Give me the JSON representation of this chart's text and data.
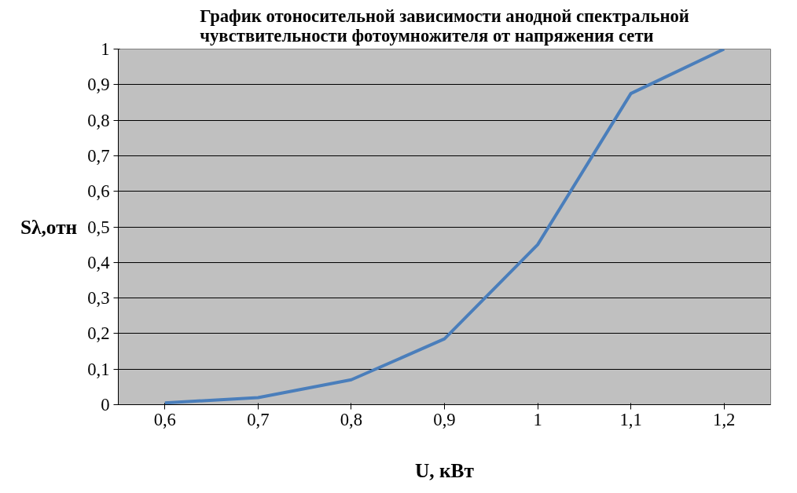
{
  "chart_data": {
    "type": "line",
    "title": "График отоносительной зависимости анодной спектральной\nчувствительности фотоумножителя от напряжения сети",
    "xlabel": "U, кВт",
    "ylabel": "Sλ,отн",
    "categories": [
      "0,6",
      "0,7",
      "0,8",
      "0,9",
      "1",
      "1,1",
      "1,2"
    ],
    "series": [
      {
        "color": "#4a7ebb",
        "values": [
          0.005,
          0.02,
          0.07,
          0.185,
          0.45,
          0.875,
          1.0
        ]
      }
    ],
    "ylim": [
      0,
      1
    ],
    "yticks": [
      0,
      {
        "value": 0.1,
        "label": "0,1"
      },
      {
        "value": 0.2,
        "label": "0,2"
      },
      {
        "value": 0.3,
        "label": "0,3"
      },
      {
        "value": 0.4,
        "label": "0,4"
      },
      {
        "value": 0.5,
        "label": "0,5"
      },
      {
        "value": 0.6,
        "label": "0,6"
      },
      {
        "value": 0.7,
        "label": "0,7"
      },
      {
        "value": 0.8,
        "label": "0,8"
      },
      {
        "value": 0.9,
        "label": "0,9"
      },
      1
    ],
    "grid": "y"
  }
}
